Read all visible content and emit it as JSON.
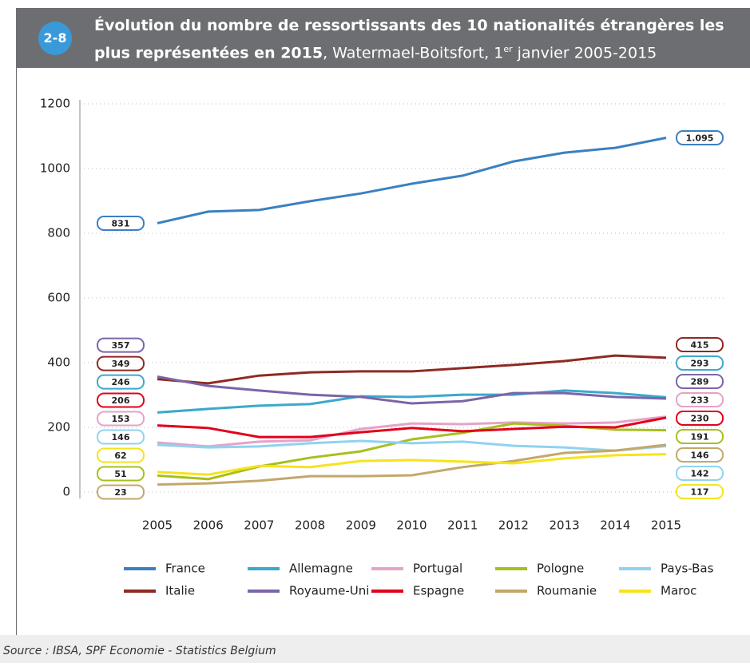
{
  "header": {
    "badge": "2-8",
    "title_bold": "Évolution du nombre de ressortissants des 10 nationalités étrangères les plus représentées en 2015",
    "title_rest": ", Watermael-Boitsfort, 1",
    "title_sup": "er",
    "title_end": " janvier 2005-2015"
  },
  "chart_data": {
    "type": "line",
    "categories": [
      "2005",
      "2006",
      "2007",
      "2008",
      "2009",
      "2010",
      "2011",
      "2012",
      "2013",
      "2014",
      "2015"
    ],
    "ylim": [
      0,
      1200
    ],
    "yticks": [
      0,
      200,
      400,
      600,
      800,
      1000,
      1200
    ],
    "grid": true,
    "series": [
      {
        "name": "France",
        "color": "#3a80c1",
        "values": [
          831,
          867,
          872,
          899,
          923,
          953,
          978,
          1022,
          1049,
          1064,
          1095
        ],
        "value_labels": [
          "831",
          null,
          null,
          null,
          null,
          null,
          null,
          null,
          null,
          null,
          "1.095"
        ]
      },
      {
        "name": "Allemagne",
        "color": "#3ba9cc",
        "values": [
          246,
          257,
          267,
          272,
          296,
          294,
          301,
          301,
          314,
          306,
          293
        ]
      },
      {
        "name": "Portugal",
        "color": "#e5a3c7",
        "values": [
          153,
          141,
          156,
          160,
          195,
          212,
          210,
          215,
          212,
          215,
          233
        ]
      },
      {
        "name": "Pologne",
        "color": "#a8bf1e",
        "values": [
          51,
          40,
          79,
          106,
          126,
          163,
          183,
          212,
          205,
          193,
          191
        ]
      },
      {
        "name": "Pays-Bas",
        "color": "#8fd3f0",
        "values": [
          146,
          138,
          141,
          151,
          158,
          151,
          156,
          143,
          138,
          128,
          142
        ]
      },
      {
        "name": "Italie",
        "color": "#8e2a22",
        "values": [
          349,
          336,
          360,
          370,
          373,
          373,
          383,
          393,
          405,
          422,
          415
        ]
      },
      {
        "name": "Royaume-Uni",
        "color": "#7b65a8",
        "values": [
          357,
          328,
          314,
          301,
          294,
          274,
          281,
          306,
          306,
          294,
          289
        ]
      },
      {
        "name": "Espagne",
        "color": "#e2001a",
        "values": [
          206,
          198,
          170,
          170,
          185,
          198,
          188,
          195,
          202,
          200,
          230
        ]
      },
      {
        "name": "Roumanie",
        "color": "#c4a76a",
        "values": [
          23,
          27,
          35,
          49,
          49,
          52,
          77,
          96,
          121,
          128,
          146
        ]
      },
      {
        "name": "Maroc",
        "color": "#f7e31b",
        "values": [
          62,
          54,
          81,
          77,
          96,
          99,
          94,
          89,
          104,
          114,
          117
        ]
      }
    ]
  },
  "source": "Source : IBSA, SPF Economie - Statistics Belgium"
}
